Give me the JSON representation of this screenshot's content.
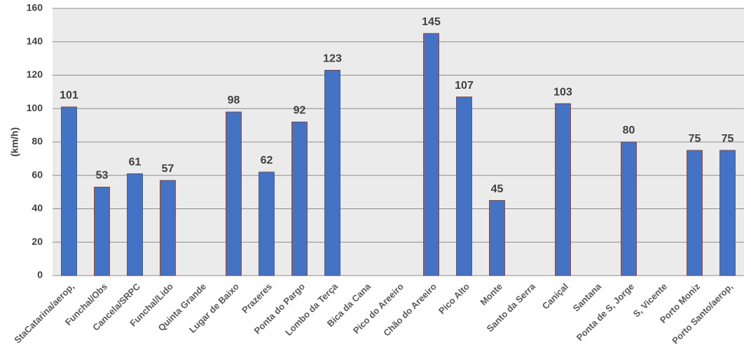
{
  "chart_data": {
    "type": "bar",
    "y_label": "(km/h)",
    "categories": [
      "StaCatarina/aerop,",
      "Funchal/Obs",
      "Cancela/SRPC",
      "Funchal/Lido",
      "Quinta Grande",
      "Lugar de Baixo",
      "Prazeres",
      "Ponta do Pargo",
      "Lombo da Terça",
      "Bica da Cana",
      "Pico do Areeiro",
      "Chão do Areeiro",
      "Pico Alto",
      "Monte",
      "Santo da Serra",
      "Caniçal",
      "Santana",
      "Ponta de S, Jorge",
      "S, Vicente",
      "Porto Moniz",
      "Porto Santo/aerop,"
    ],
    "values": [
      101,
      53,
      61,
      57,
      null,
      98,
      62,
      92,
      123,
      null,
      null,
      145,
      107,
      45,
      null,
      103,
      null,
      80,
      null,
      75,
      75
    ],
    "color": "#4472c4",
    "ylim": [
      0,
      160
    ],
    "yticks": [
      0,
      20,
      40,
      60,
      80,
      100,
      120,
      140,
      160
    ],
    "grid": true
  }
}
